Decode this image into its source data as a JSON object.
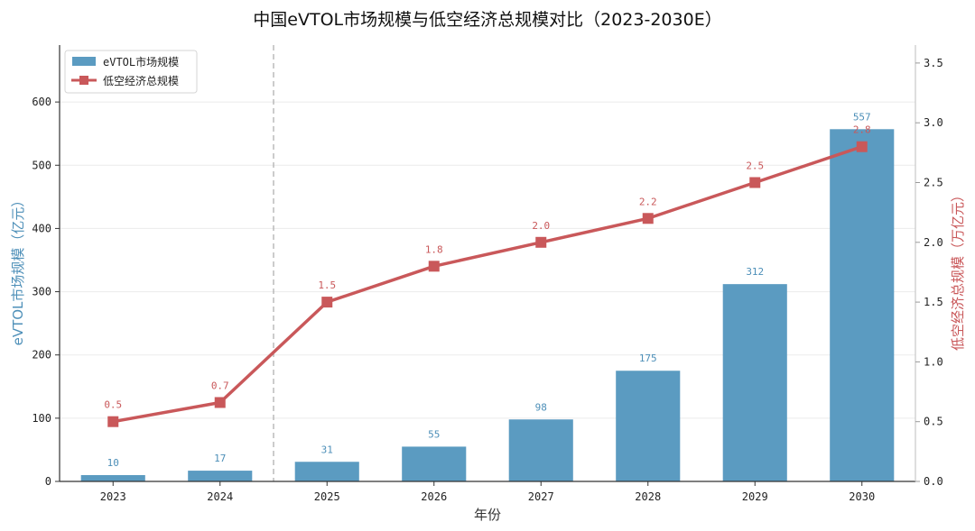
{
  "chart_data": {
    "type": "bar",
    "title": "中国eVTOL市场规模与低空经济总规模对比（2023-2030E）",
    "xlabel": "年份",
    "ylabel_left": "eVTOL市场规模（亿元）",
    "ylabel_right": "低空经济总规模（万亿元）",
    "categories": [
      "2023",
      "2024",
      "2025",
      "2026",
      "2027",
      "2028",
      "2029",
      "2030"
    ],
    "ylim_left": [
      0,
      690
    ],
    "yticks_left": [
      0,
      100,
      200,
      300,
      400,
      500,
      600
    ],
    "ylim_right": [
      0,
      3.65
    ],
    "yticks_right": [
      "0.0",
      "0.5",
      "1.0",
      "1.5",
      "2.0",
      "2.5",
      "3.0",
      "3.5"
    ],
    "grid": "horizontal",
    "legend_position": "top-left",
    "divider_after_category": "2024",
    "series": [
      {
        "name": "eVTOL市场规模",
        "kind": "bar",
        "axis": "left",
        "color": "#5b9bc1",
        "values": [
          10,
          17,
          31,
          55,
          98,
          175,
          312,
          557
        ],
        "labels": [
          "10",
          "17",
          "31",
          "55",
          "98",
          "175",
          "312",
          "557"
        ]
      },
      {
        "name": "低空经济总规模",
        "kind": "line",
        "axis": "right",
        "color": "#c9585a",
        "values": [
          0.5,
          0.66,
          1.5,
          1.8,
          2.0,
          2.2,
          2.5,
          2.8
        ],
        "labels": [
          "0.5",
          "0.7",
          "1.5",
          "1.8",
          "2.0",
          "2.2",
          "2.5",
          "2.8"
        ]
      }
    ]
  }
}
